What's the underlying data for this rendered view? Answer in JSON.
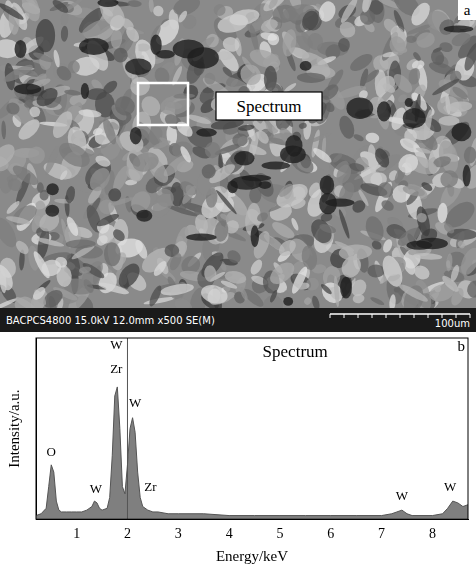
{
  "panel_a": {
    "letter": "a",
    "box_label": "Spectrum",
    "info_bar": "BACPCS4800 15.0kV 12.0mm x500 SE(M)",
    "scale_bar": "100um"
  },
  "chart_data": {
    "type": "line",
    "letter": "b",
    "title": "Spectrum",
    "x_label": "Energy/keV",
    "y_label": "Intensity/a.u.",
    "x": [
      0.2,
      0.3,
      0.4,
      0.45,
      0.5,
      0.55,
      0.6,
      0.65,
      0.7,
      0.8,
      0.9,
      1.0,
      1.1,
      1.2,
      1.3,
      1.35,
      1.4,
      1.45,
      1.5,
      1.6,
      1.65,
      1.7,
      1.75,
      1.8,
      1.85,
      1.9,
      1.95,
      2.0,
      2.05,
      2.1,
      2.15,
      2.2,
      2.25,
      2.3,
      2.4,
      2.5,
      2.6,
      2.8,
      3.0,
      3.5,
      4.0,
      4.5,
      5.0,
      5.5,
      6.0,
      6.5,
      7.0,
      7.2,
      7.3,
      7.4,
      7.5,
      7.6,
      8.0,
      8.2,
      8.3,
      8.4,
      8.5,
      8.6,
      8.7
    ],
    "values": [
      2,
      3,
      6,
      18,
      30,
      26,
      10,
      5,
      4,
      4,
      4,
      4,
      4,
      5,
      7,
      10,
      9,
      6,
      5,
      6,
      12,
      35,
      68,
      73,
      50,
      18,
      14,
      30,
      50,
      56,
      48,
      26,
      12,
      7,
      5,
      4,
      4,
      3,
      3,
      3,
      2,
      2,
      2,
      2,
      2,
      2,
      2,
      3,
      4,
      5,
      3,
      2,
      2,
      3,
      6,
      10,
      9,
      7,
      8
    ],
    "color": "#7f7f7f",
    "xlim": [
      0.2,
      8.7
    ],
    "xticks": [
      1,
      2,
      3,
      4,
      5,
      6,
      7,
      8
    ],
    "ylim": [
      0,
      100
    ],
    "tick_labels": "x",
    "grid": false,
    "vline": 2.0,
    "annotations": [
      {
        "text": "O",
        "x": 0.5,
        "y": 33
      },
      {
        "text": "W",
        "x": 1.38,
        "y": 13
      },
      {
        "text": "W",
        "x": 1.78,
        "y": 92
      },
      {
        "text": "Zr",
        "x": 1.78,
        "y": 79
      },
      {
        "text": "W",
        "x": 2.15,
        "y": 60
      },
      {
        "text": "Zr",
        "x": 2.45,
        "y": 14
      },
      {
        "text": "W",
        "x": 7.4,
        "y": 9
      },
      {
        "text": "W",
        "x": 8.35,
        "y": 14
      }
    ]
  }
}
